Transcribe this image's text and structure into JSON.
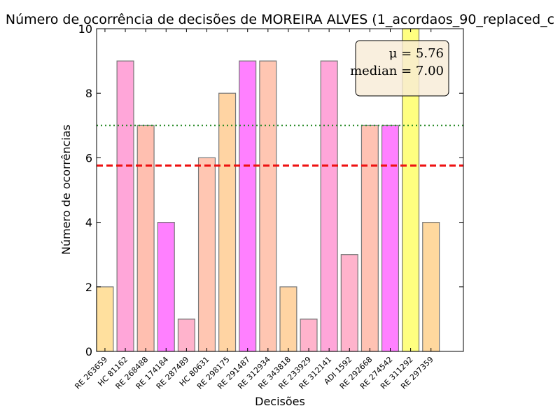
{
  "chart_data": {
    "type": "bar",
    "title": "Número de ocorrência de decisões de MOREIRA ALVES (1_acordaos_90_replaced_c",
    "xlabel": "Decisões",
    "ylabel": "Número de ocorrências",
    "ylim": [
      0,
      10
    ],
    "yticks": [
      "0",
      "2",
      "4",
      "6",
      "8",
      "10"
    ],
    "categories": [
      "RE 263659",
      "HC 81162",
      "RE 268488",
      "RE 174184",
      "RE 287489",
      "HC 80631",
      "RE 298175",
      "RE 291487",
      "RE 312934",
      "RE 343818",
      "RE 233929",
      "RE 312141",
      "ADI 1592",
      "RE 292668",
      "RE 274542",
      "RE 311292",
      "RE 297359"
    ],
    "values": [
      2,
      9,
      7,
      4,
      1,
      6,
      8,
      9,
      9,
      2,
      1,
      9,
      3,
      7,
      7,
      10,
      4
    ],
    "colors": [
      "#ffe09e",
      "#ffa6d9",
      "#ffbfb0",
      "#ff80ff",
      "#ffb3cc",
      "#ffc6b2",
      "#ffd4a3",
      "#ff80ff",
      "#ffc6b2",
      "#ffd4a3",
      "#ffb3cc",
      "#ffa6d9",
      "#ffb3cc",
      "#ffc2b3",
      "#ff80ff",
      "#ffff80",
      "#ffd89e"
    ],
    "mean": 5.76,
    "median": 7.0,
    "mean_label": "μ = 5.76",
    "median_label": "median = 7.00",
    "mean_line_color": "#ee1111",
    "median_line_color": "#228822",
    "stats_box_color": "#f8ebd6",
    "grid": false
  }
}
